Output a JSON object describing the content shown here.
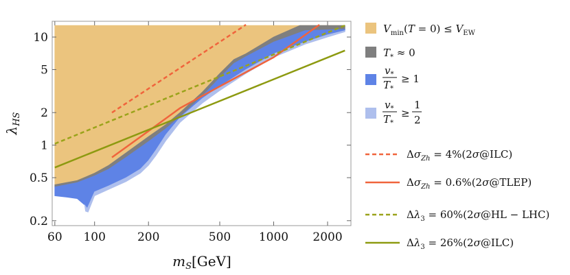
{
  "chart_data": {
    "type": "area",
    "xlabel": "m_S[GeV]",
    "ylabel": "λ_HS",
    "xscale": "log",
    "yscale": "log",
    "xlim": [
      58,
      2700
    ],
    "ylim": [
      0.18,
      14
    ],
    "xticks": [
      60,
      100,
      200,
      500,
      1000,
      2000
    ],
    "xtick_labels": [
      "60",
      "100",
      "200",
      "500",
      "1000",
      "2000"
    ],
    "yticks": [
      0.2,
      0.5,
      1,
      2,
      5,
      10
    ],
    "ytick_labels": [
      "0.2",
      "0.5",
      "1",
      "2",
      "5",
      "10"
    ],
    "grid": false,
    "legend_position": "right",
    "regions": [
      {
        "name": "V_min(T=0) ≤ V_EW",
        "color": "#ebc47e",
        "boundary": [
          [
            60,
            12.8
          ],
          [
            2500,
            12.8
          ],
          [
            2500,
            12.5
          ],
          [
            1400,
            12.8
          ],
          [
            1000,
            10
          ],
          [
            700,
            7
          ],
          [
            600,
            6.2
          ],
          [
            500,
            4.6
          ],
          [
            400,
            3.1
          ],
          [
            300,
            2.0
          ],
          [
            250,
            1.55
          ],
          [
            200,
            1.2
          ],
          [
            150,
            0.85
          ],
          [
            120,
            0.65
          ],
          [
            100,
            0.55
          ],
          [
            80,
            0.47
          ],
          [
            60,
            0.43
          ]
        ]
      },
      {
        "name": "T_* ≈ 0",
        "color": "#7f7f7f",
        "boundary": [
          [
            60,
            0.43
          ],
          [
            80,
            0.47
          ],
          [
            100,
            0.55
          ],
          [
            120,
            0.65
          ],
          [
            150,
            0.85
          ],
          [
            200,
            1.2
          ],
          [
            250,
            1.55
          ],
          [
            300,
            2.0
          ],
          [
            400,
            3.1
          ],
          [
            500,
            4.6
          ],
          [
            600,
            6.2
          ],
          [
            700,
            7
          ],
          [
            1000,
            10
          ],
          [
            1400,
            12.8
          ],
          [
            2500,
            12.8
          ],
          [
            2500,
            11.8
          ],
          [
            1500,
            11.5
          ],
          [
            1000,
            9
          ],
          [
            700,
            6.6
          ],
          [
            600,
            5.7
          ],
          [
            500,
            4.2
          ],
          [
            400,
            2.85
          ],
          [
            300,
            1.83
          ],
          [
            250,
            1.42
          ],
          [
            200,
            1.08
          ],
          [
            150,
            0.77
          ],
          [
            120,
            0.6
          ],
          [
            100,
            0.52
          ],
          [
            80,
            0.45
          ],
          [
            60,
            0.41
          ]
        ]
      },
      {
        "name": "v_*/T_* ≥ 1",
        "color": "#5e83e6",
        "boundary": [
          [
            60,
            0.41
          ],
          [
            80,
            0.45
          ],
          [
            100,
            0.52
          ],
          [
            120,
            0.6
          ],
          [
            150,
            0.77
          ],
          [
            200,
            1.08
          ],
          [
            250,
            1.42
          ],
          [
            300,
            1.83
          ],
          [
            400,
            2.85
          ],
          [
            500,
            4.2
          ],
          [
            600,
            5.7
          ],
          [
            700,
            6.6
          ],
          [
            1000,
            9
          ],
          [
            1500,
            11.5
          ],
          [
            2500,
            11.8
          ],
          [
            2500,
            11.5
          ],
          [
            2000,
            10.5
          ],
          [
            1500,
            9
          ],
          [
            1000,
            7
          ],
          [
            700,
            5
          ],
          [
            500,
            3.5
          ],
          [
            400,
            2.7
          ],
          [
            300,
            1.8
          ],
          [
            250,
            1.25
          ],
          [
            220,
            0.9
          ],
          [
            200,
            0.72
          ],
          [
            180,
            0.6
          ],
          [
            150,
            0.5
          ],
          [
            120,
            0.42
          ],
          [
            100,
            0.37
          ],
          [
            91,
            0.26
          ],
          [
            88,
            0.28
          ],
          [
            80,
            0.32
          ],
          [
            70,
            0.33
          ],
          [
            60,
            0.34
          ]
        ]
      },
      {
        "name": "v_*/T_* ≥ 1/2",
        "color": "#aebfed",
        "boundary": [
          [
            88,
            0.28
          ],
          [
            91,
            0.26
          ],
          [
            100,
            0.37
          ],
          [
            120,
            0.42
          ],
          [
            150,
            0.5
          ],
          [
            180,
            0.6
          ],
          [
            200,
            0.72
          ],
          [
            220,
            0.9
          ],
          [
            250,
            1.25
          ],
          [
            300,
            1.8
          ],
          [
            400,
            2.7
          ],
          [
            500,
            3.5
          ],
          [
            700,
            5
          ],
          [
            1000,
            7
          ],
          [
            1500,
            9
          ],
          [
            2000,
            10.5
          ],
          [
            2500,
            11.5
          ],
          [
            2500,
            11.2
          ],
          [
            2000,
            10
          ],
          [
            1500,
            8.6
          ],
          [
            1000,
            6.5
          ],
          [
            700,
            4.6
          ],
          [
            500,
            3.2
          ],
          [
            400,
            2.45
          ],
          [
            300,
            1.62
          ],
          [
            250,
            1.1
          ],
          [
            220,
            0.8
          ],
          [
            200,
            0.65
          ],
          [
            180,
            0.55
          ],
          [
            150,
            0.46
          ],
          [
            120,
            0.39
          ],
          [
            100,
            0.34
          ],
          [
            92,
            0.24
          ],
          [
            89,
            0.245
          ]
        ]
      }
    ],
    "series": [
      {
        "name": "Δσ_Zh = 4%(2σ@ILC)",
        "color": "#f0643c",
        "dash": "dashed",
        "x": [
          125,
          700
        ],
        "y": [
          2.0,
          13.0
        ]
      },
      {
        "name": "Δσ_Zh = 0.6%(2σ@TLEP)",
        "color": "#f0643c",
        "dash": "solid",
        "x": [
          125,
          200,
          300,
          500,
          1000,
          1800
        ],
        "y": [
          0.77,
          1.35,
          2.2,
          3.5,
          6.5,
          13.0
        ]
      },
      {
        "name": "Δλ_3 = 60%(2σ@HL − LHC)",
        "color": "#9aa31a",
        "dash": "dashed",
        "x": [
          60,
          2500
        ],
        "y": [
          1.03,
          12.8
        ]
      },
      {
        "name": "Δλ_3 = 26%(2σ@ILC)",
        "color": "#8d9a10",
        "dash": "solid",
        "x": [
          60,
          2500
        ],
        "y": [
          0.62,
          7.5
        ]
      }
    ]
  }
}
